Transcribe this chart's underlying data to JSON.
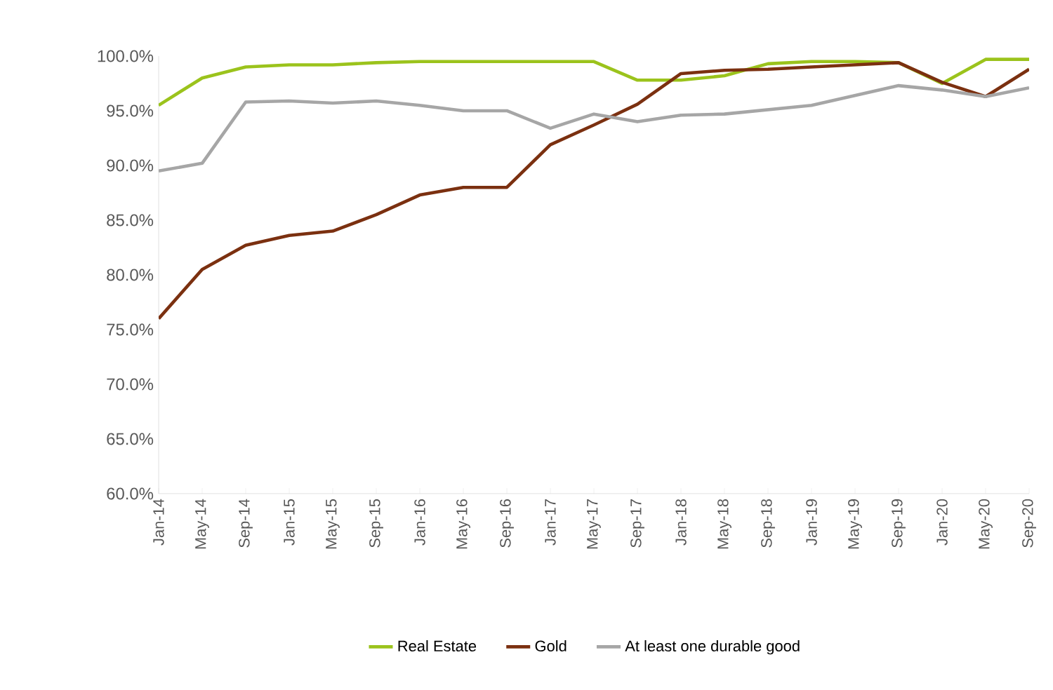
{
  "chart_data": {
    "type": "line",
    "categories": [
      "Jan-14",
      "May-14",
      "Sep-14",
      "Jan-15",
      "May-15",
      "Sep-15",
      "Jan-16",
      "May-16",
      "Sep-16",
      "Jan-17",
      "May-17",
      "Sep-17",
      "Jan-18",
      "May-18",
      "Sep-18",
      "Jan-19",
      "May-19",
      "Sep-19",
      "Jan-20",
      "May-20",
      "Sep-20"
    ],
    "series": [
      {
        "name": "Real Estate",
        "color": "#9bc31c",
        "values": [
          95.5,
          98.0,
          99.0,
          99.2,
          99.2,
          99.4,
          99.5,
          99.5,
          99.5,
          99.5,
          99.5,
          97.8,
          97.8,
          98.2,
          99.3,
          99.5,
          99.5,
          99.4,
          97.5,
          99.7,
          99.7
        ]
      },
      {
        "name": "Gold",
        "color": "#7b3010",
        "values": [
          76.0,
          80.5,
          82.7,
          83.6,
          84.0,
          85.5,
          87.3,
          88.0,
          88.0,
          91.9,
          93.7,
          95.6,
          98.4,
          98.7,
          98.8,
          99.0,
          99.2,
          99.4,
          97.6,
          96.3,
          98.8
        ]
      },
      {
        "name": "At least one durable good",
        "color": "#a6a6a6",
        "values": [
          89.5,
          90.2,
          95.8,
          95.9,
          95.7,
          95.9,
          95.5,
          95.0,
          95.0,
          93.4,
          94.7,
          94.0,
          94.6,
          94.7,
          95.1,
          95.5,
          96.4,
          97.3,
          96.9,
          96.3,
          97.1
        ]
      }
    ],
    "ylim": [
      60,
      100
    ],
    "yticks": [
      {
        "value": 60,
        "label": "60.0%"
      },
      {
        "value": 65,
        "label": "65.0%"
      },
      {
        "value": 70,
        "label": "70.0%"
      },
      {
        "value": 75,
        "label": "75.0%"
      },
      {
        "value": 80,
        "label": "80.0%"
      },
      {
        "value": 85,
        "label": "85.0%"
      },
      {
        "value": 90,
        "label": "90.0%"
      },
      {
        "value": 95,
        "label": "95.0%"
      },
      {
        "value": 100,
        "label": "100.0%"
      }
    ],
    "grid": false,
    "legend": "bottom",
    "marker": "none",
    "line_style": "solid"
  }
}
